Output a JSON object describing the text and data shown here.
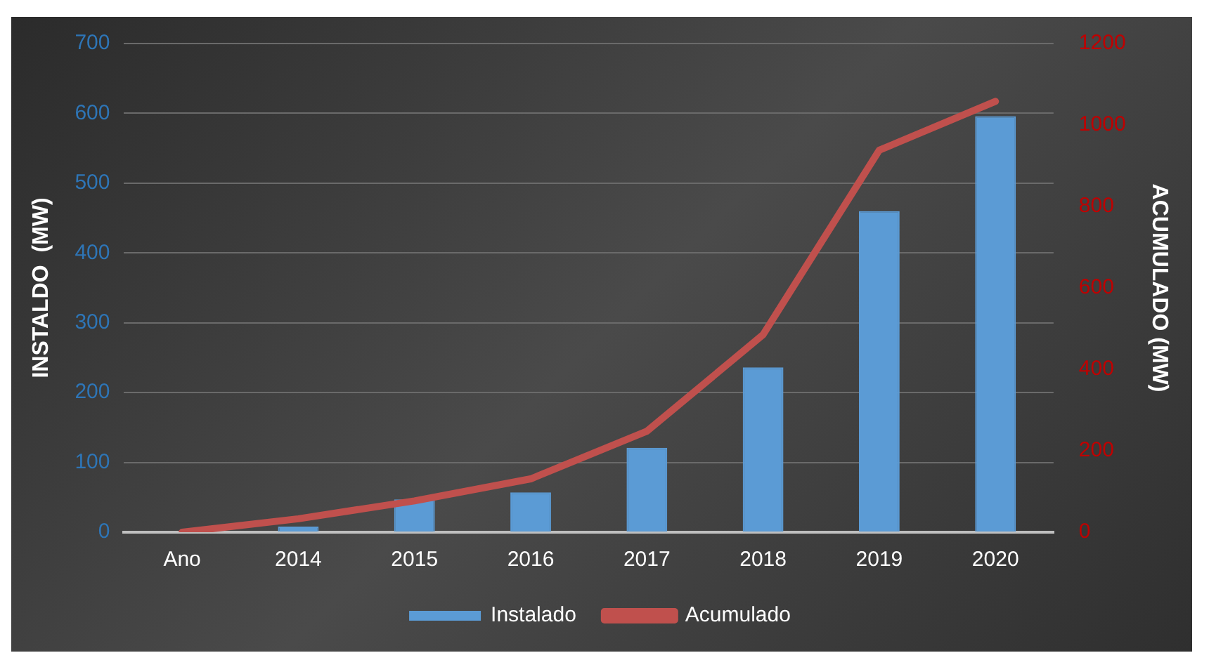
{
  "chart_data": {
    "type": "bar",
    "categories": [
      "Ano",
      "2014",
      "2015",
      "2016",
      "2017",
      "2018",
      "2019",
      "2020"
    ],
    "ylabel": "INSTALDO  (MW)",
    "y2label": "ACUMULADO (MW)",
    "series": [
      {
        "name": "Instalado",
        "color": "#5b9bd5",
        "values": [
          0,
          8,
          47,
          57,
          121,
          236,
          460,
          596
        ]
      },
      {
        "name": "Acumulado",
        "type": "line",
        "axis": "y2",
        "color": "#c0504d",
        "values": [
          0,
          33,
          77,
          131,
          248,
          485,
          938,
          1058
        ]
      }
    ],
    "ylim": [
      0,
      700
    ],
    "yticks": [
      0,
      100,
      200,
      300,
      400,
      500,
      600,
      700
    ],
    "y2lim": [
      0,
      1200
    ],
    "y2ticks": [
      0,
      200,
      400,
      600,
      800,
      1000,
      1200
    ],
    "grid": "y",
    "legend": "bottom",
    "marker": "none"
  }
}
